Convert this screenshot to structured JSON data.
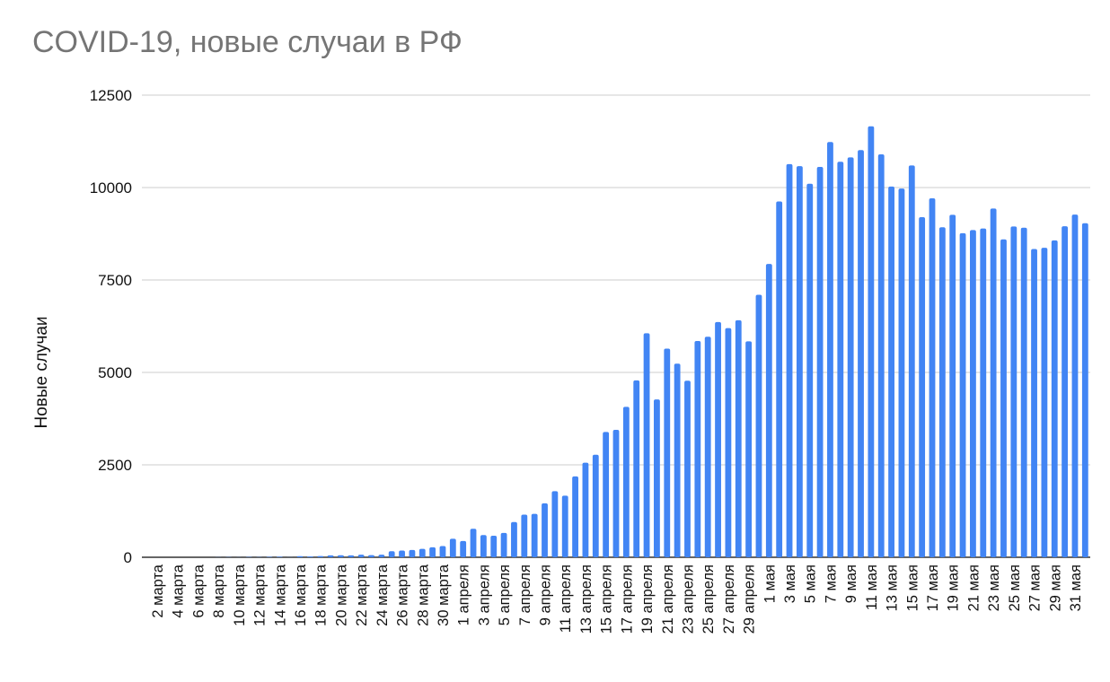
{
  "chart_data": {
    "type": "bar",
    "title": "COVID-19, новые случаи в РФ",
    "xlabel": "",
    "ylabel": "Новые случаи",
    "ylim": [
      0,
      12500
    ],
    "yticks": [
      0,
      2500,
      5000,
      7500,
      10000,
      12500
    ],
    "grid": true,
    "color": "#4285f4",
    "categories": [
      "1 марта",
      "2 марта",
      "3 марта",
      "4 марта",
      "5 марта",
      "6 марта",
      "7 марта",
      "8 марта",
      "9 марта",
      "10 марта",
      "11 марта",
      "12 марта",
      "13 марта",
      "14 марта",
      "15 марта",
      "16 марта",
      "17 марта",
      "18 марта",
      "19 марта",
      "20 марта",
      "21 марта",
      "22 марта",
      "23 марта",
      "24 марта",
      "25 марта",
      "26 марта",
      "27 марта",
      "28 марта",
      "29 марта",
      "30 марта",
      "31 марта",
      "1 апреля",
      "2 апреля",
      "3 апреля",
      "4 апреля",
      "5 апреля",
      "6 апреля",
      "7 апреля",
      "8 апреля",
      "9 апреля",
      "10 апреля",
      "11 апреля",
      "12 апреля",
      "13 апреля",
      "14 апреля",
      "15 апреля",
      "16 апреля",
      "17 апреля",
      "18 апреля",
      "19 апреля",
      "20 апреля",
      "21 апреля",
      "22 апреля",
      "23 апреля",
      "24 апреля",
      "25 апреля",
      "26 апреля",
      "27 апреля",
      "28 апреля",
      "29 апреля",
      "30 апреля",
      "1 мая",
      "2 мая",
      "3 мая",
      "4 мая",
      "5 мая",
      "6 мая",
      "7 мая",
      "8 мая",
      "9 мая",
      "10 мая",
      "11 мая",
      "12 мая",
      "13 мая",
      "14 мая",
      "15 мая",
      "16 мая",
      "17 мая",
      "18 мая",
      "19 мая",
      "20 мая",
      "21 мая",
      "22 мая",
      "23 мая",
      "24 мая",
      "25 мая",
      "26 мая",
      "27 мая",
      "28 мая",
      "29 мая",
      "30 мая",
      "31 мая",
      "1 июня"
    ],
    "tick_labels": [
      "2 марта",
      "4 марта",
      "6 марта",
      "8 марта",
      "10 марта",
      "12 марта",
      "14 марта",
      "16 марта",
      "18 марта",
      "20 марта",
      "22 марта",
      "24 марта",
      "26 марта",
      "28 марта",
      "30 марта",
      "1 апреля",
      "3 апреля",
      "5 апреля",
      "7 апреля",
      "9 апреля",
      "11 апреля",
      "13 апреля",
      "15 апреля",
      "17 апреля",
      "19 апреля",
      "21 апреля",
      "23 апреля",
      "25 апреля",
      "27 апреля",
      "29 апреля",
      "1 мая",
      "3 мая",
      "5 мая",
      "7 мая",
      "9 мая",
      "11 мая",
      "13 мая",
      "15 мая",
      "17 мая",
      "19 мая",
      "21 мая",
      "23 мая",
      "25 мая",
      "27 мая",
      "29 мая",
      "31 мая"
    ],
    "values": [
      0,
      1,
      0,
      0,
      0,
      0,
      0,
      4,
      7,
      3,
      8,
      6,
      11,
      14,
      4,
      30,
      21,
      33,
      52,
      54,
      53,
      71,
      57,
      71,
      163,
      182,
      196,
      228,
      270,
      302,
      500,
      440,
      771,
      601,
      582,
      658,
      954,
      1154,
      1175,
      1459,
      1786,
      1667,
      2186,
      2558,
      2774,
      3388,
      3448,
      4070,
      4785,
      6060,
      4268,
      5642,
      5236,
      4774,
      5849,
      5966,
      6361,
      6198,
      6411,
      5841,
      7099,
      7933,
      9623,
      10633,
      10581,
      10102,
      10559,
      11231,
      10699,
      10817,
      11012,
      11656,
      10899,
      10028,
      9974,
      10598,
      9200,
      9709,
      8926,
      9263,
      8764,
      8849,
      8894,
      9434,
      8599,
      8946,
      8915,
      8338,
      8371,
      8572,
      8952,
      9268,
      9035
    ]
  }
}
